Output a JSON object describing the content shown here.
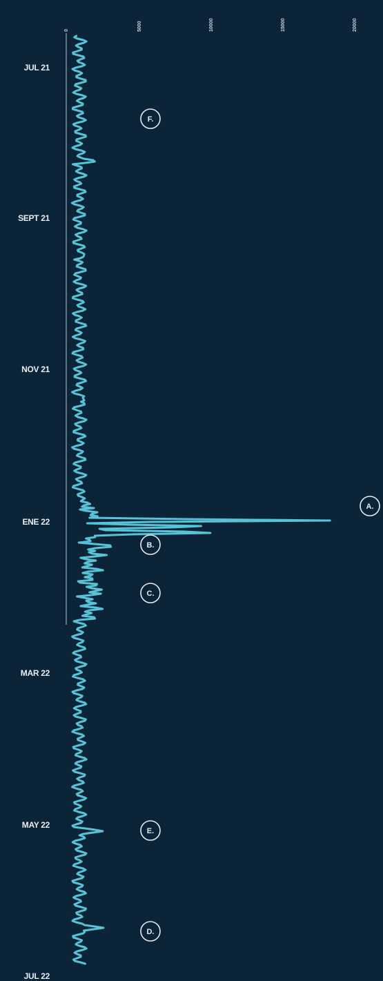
{
  "chart_data": {
    "type": "line",
    "orientation": "vertical-time",
    "title": "",
    "xlabel": "",
    "ylabel": "",
    "value_ticks": [
      "0",
      "5000",
      "10000",
      "15000",
      "20000"
    ],
    "xlim": [
      0,
      20000
    ],
    "time_labels": [
      "JUL 21",
      "SEPT 21",
      "NOV 21",
      "ENE 22",
      "MAR 22",
      "MAY 22",
      "JUL 22"
    ],
    "series": [
      {
        "color": "#58c3d6",
        "points": [
          {
            "t": "JUL 21",
            "v": 900
          },
          {
            "t": "SEPT 21",
            "v": 1000
          },
          {
            "t": "NOV 21",
            "v": 1100
          },
          {
            "t": "ENE 22",
            "v": 19500
          },
          {
            "t": "ENE 22",
            "v": 10700
          },
          {
            "t": "ENE 22",
            "v": 3600
          },
          {
            "t": "MAR 22",
            "v": 900
          },
          {
            "t": "MAY 22",
            "v": 2600
          },
          {
            "t": "JUL 22",
            "v": 2600
          }
        ]
      }
    ],
    "annotations": [
      {
        "label": "A.",
        "t": "ENE 22",
        "v": 19500
      },
      {
        "label": "B.",
        "t": "ENE 22",
        "v": 3600
      },
      {
        "label": "C.",
        "t": "FEB 22",
        "v": 2700
      },
      {
        "label": "D.",
        "t": "JUL 22",
        "v": 2600
      },
      {
        "label": "E.",
        "t": "MAY 22",
        "v": 2700
      },
      {
        "label": "F.",
        "t": "JUL 21",
        "v": 2200
      }
    ],
    "grid": false,
    "legend": "none"
  },
  "colors": {
    "background": "#0c2438",
    "line": "#58c3d6",
    "axis": "#b9c6cf",
    "text": "#e9eef2"
  }
}
